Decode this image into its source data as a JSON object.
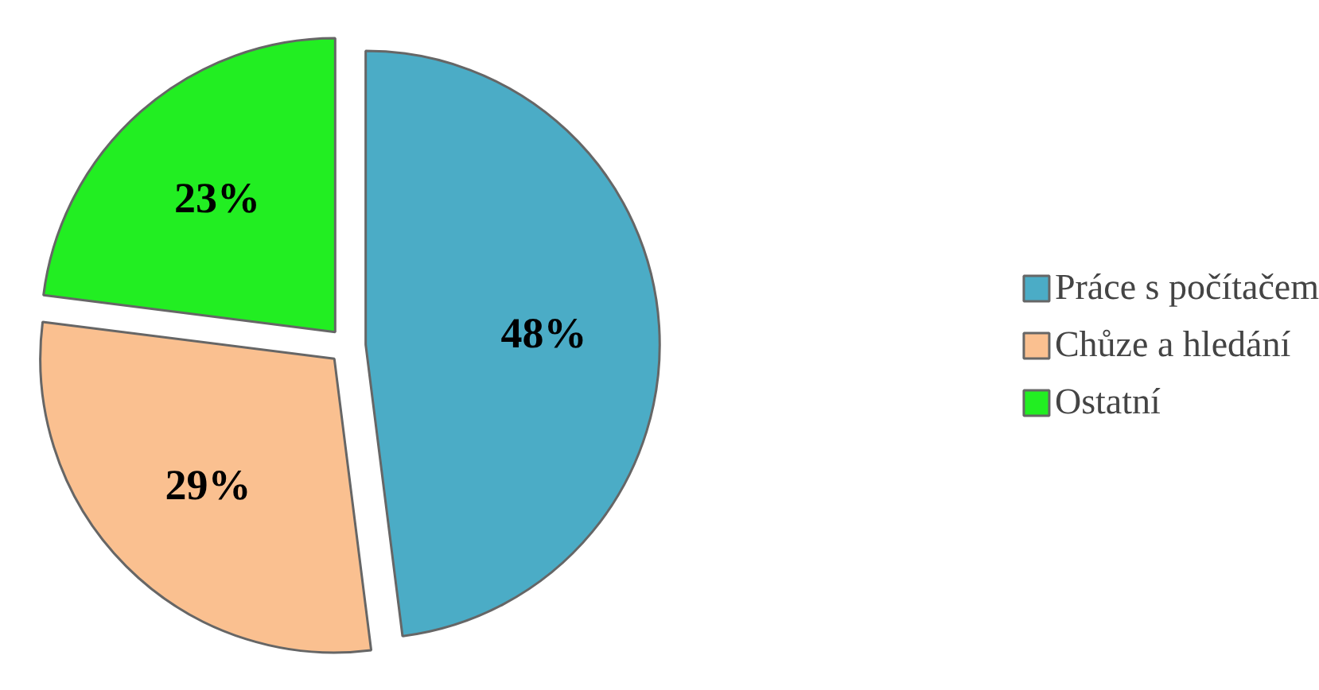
{
  "chart_data": {
    "type": "pie",
    "categories": [
      "Práce s počítačem",
      "Chůze a hledání",
      "Ostatní"
    ],
    "values": [
      48,
      29,
      23
    ],
    "colors": [
      "#4bacc6",
      "#fac090",
      "#22ee22"
    ],
    "value_labels": [
      "48%",
      "29%",
      "23%"
    ],
    "legend": "right"
  }
}
